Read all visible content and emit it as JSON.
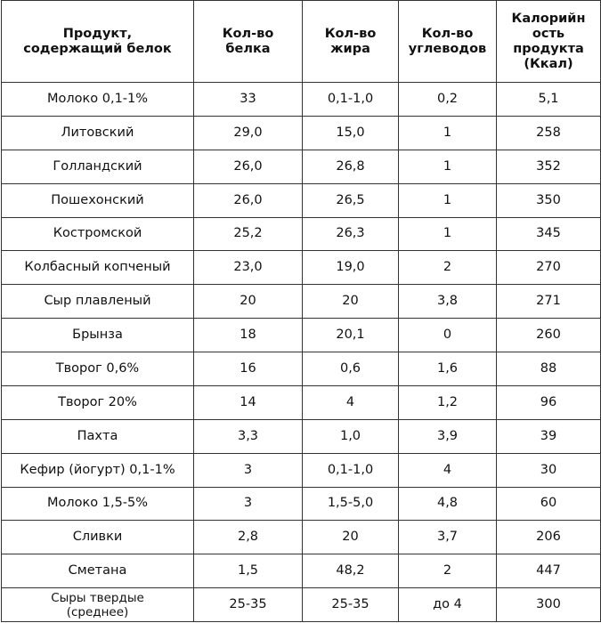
{
  "table": {
    "header": [
      [
        "Продукт,",
        "содержащий белок"
      ],
      [
        "Кол-во",
        "белка"
      ],
      [
        "Кол-во",
        "жира"
      ],
      [
        "Кол-во",
        "углеводов"
      ],
      [
        "Калорийн",
        "ость",
        "продукта",
        "(Ккал)"
      ]
    ],
    "rows": [
      [
        "Молоко 0,1-1%",
        "33",
        "0,1-1,0",
        "0,2",
        "5,1"
      ],
      [
        "Литовский",
        "29,0",
        "15,0",
        "1",
        "258"
      ],
      [
        "Голландский",
        "26,0",
        "26,8",
        "1",
        "352"
      ],
      [
        "Пошехонский",
        "26,0",
        "26,5",
        "1",
        "350"
      ],
      [
        "Костромской",
        "25,2",
        "26,3",
        "1",
        "345"
      ],
      [
        "Колбасный копченый",
        "23,0",
        "19,0",
        "2",
        "270"
      ],
      [
        "Сыр плавленый",
        "20",
        "20",
        "3,8",
        "271"
      ],
      [
        "Брынза",
        "18",
        "20,1",
        "0",
        "260"
      ],
      [
        "Творог 0,6%",
        "16",
        "0,6",
        "1,6",
        "88"
      ],
      [
        "Творог 20%",
        "14",
        "4",
        "1,2",
        "96"
      ],
      [
        "Пахта",
        "3,3",
        "1,0",
        "3,9",
        "39"
      ],
      [
        "Кефир (йогурт) 0,1-1%",
        "3",
        "0,1-1,0",
        "4",
        "30"
      ],
      [
        "Молоко 1,5-5%",
        "3",
        "1,5-5,0",
        "4,8",
        "60"
      ],
      [
        "Сливки",
        "2,8",
        "20",
        "3,7",
        "206"
      ],
      [
        "Сметана",
        "1,5",
        "48,2",
        "2",
        "447"
      ],
      [
        [
          "Сыры твердые",
          "(среднее)"
        ],
        "25-35",
        "25-35",
        "до 4",
        "300"
      ]
    ]
  }
}
